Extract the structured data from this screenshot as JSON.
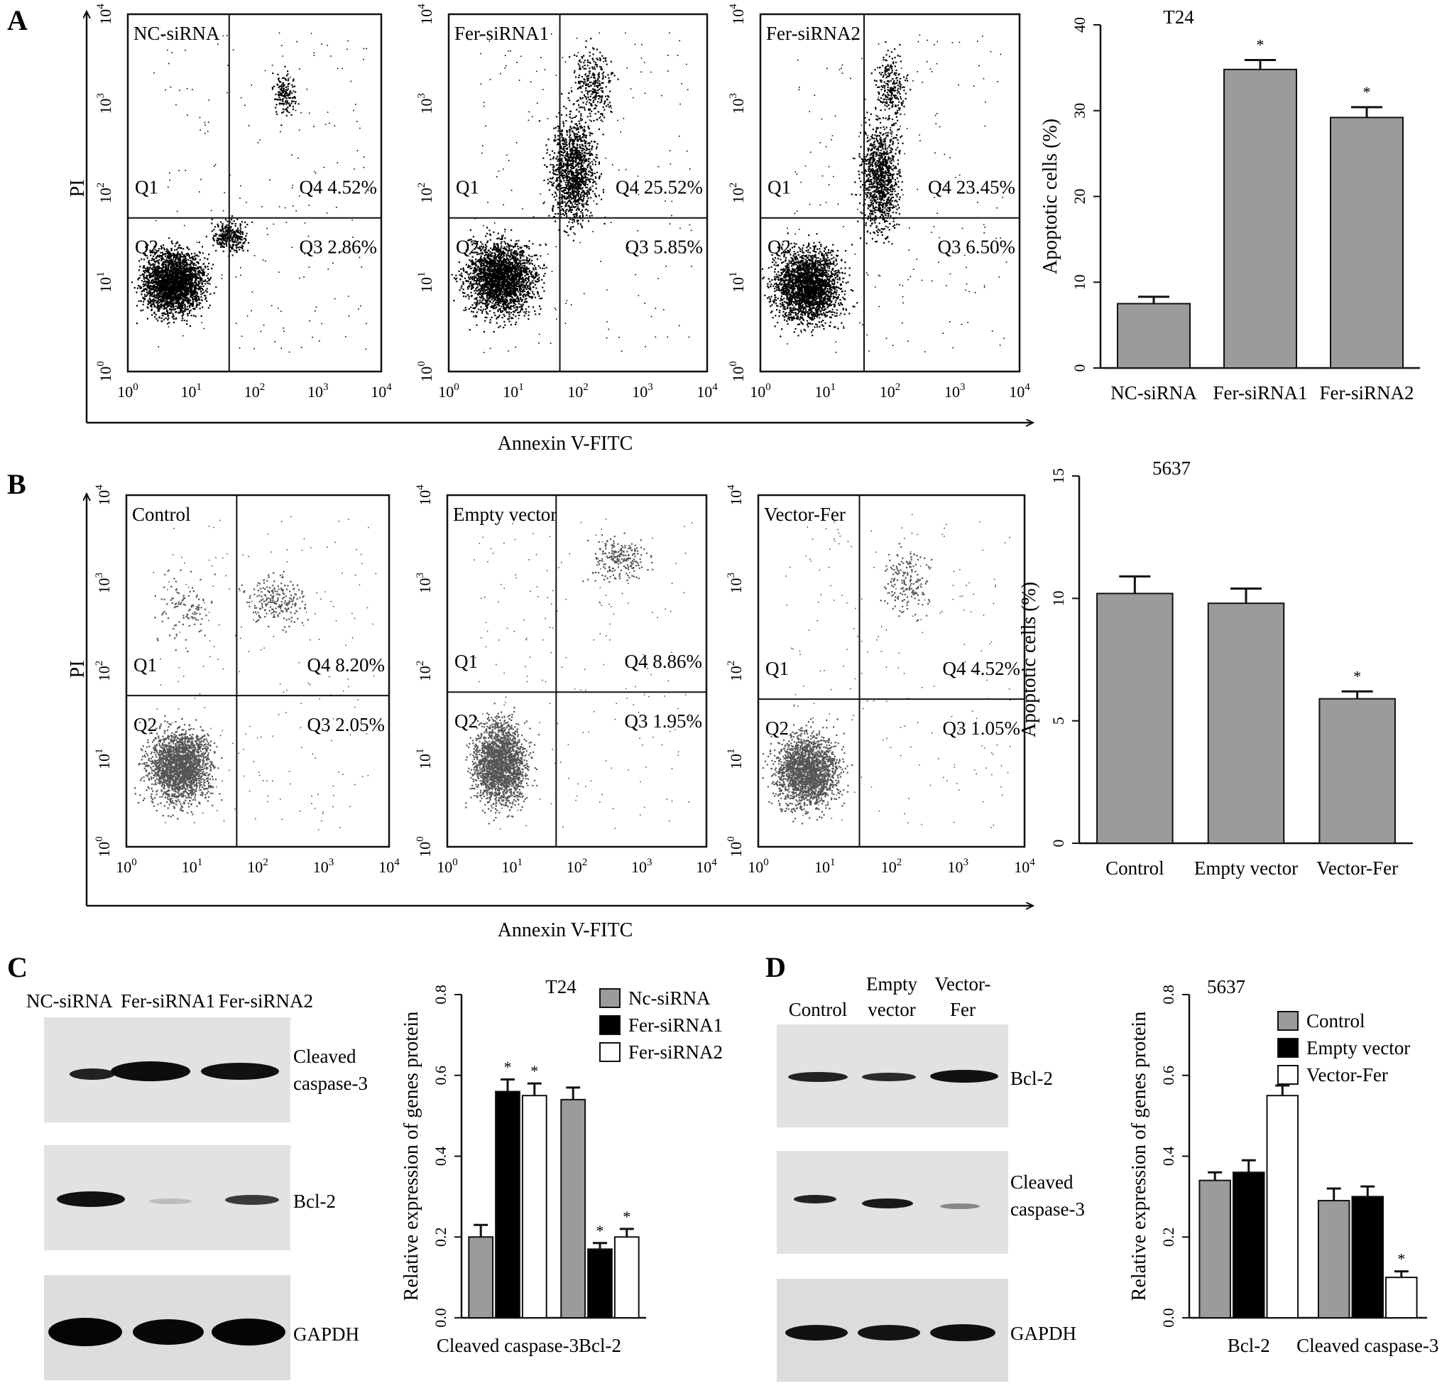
{
  "panel_letters": [
    "A",
    "B",
    "C",
    "D"
  ],
  "A": {
    "axis_x": "Annexin V-FITC",
    "axis_y": "PI",
    "decade_ticks": [
      "10",
      "10",
      "10",
      "10",
      "10"
    ],
    "decade_exps": [
      "0",
      "1",
      "2",
      "3",
      "4"
    ],
    "plots": [
      {
        "title": "NC-siRNA",
        "q1": "Q1",
        "q2": "Q2",
        "q3": "Q3 2.86%",
        "q4": "Q4 4.52%"
      },
      {
        "title": "Fer-siRNA1",
        "q1": "Q1",
        "q2": "Q2",
        "q3": "Q3   5.85%",
        "q4": "Q4 25.52%"
      },
      {
        "title": "Fer-siRNA2",
        "q1": "Q1",
        "q2": "Q2",
        "q3": "Q3   6.50%",
        "q4": "Q4 23.45%"
      }
    ]
  },
  "B": {
    "axis_x": "Annexin V-FITC",
    "axis_y": "PI",
    "plots": [
      {
        "title": "Control",
        "q1": "Q1",
        "q2": "Q2",
        "q3": "Q3 2.05%",
        "q4": "Q4 8.20%"
      },
      {
        "title": "Empty vector",
        "q1": "Q1",
        "q2": "Q2",
        "q3": "Q3 1.95%",
        "q4": "Q4 8.86%"
      },
      {
        "title": "Vector-Fer",
        "q1": "Q1",
        "q2": "Q2",
        "q3": "Q3 1.05%",
        "q4": "Q4 4.52%"
      }
    ]
  },
  "C": {
    "blot_lanes": [
      "NC-siRNA",
      "Fer-siRNA1",
      "Fer-siRNA2"
    ],
    "blot_bands": [
      "Cleaved",
      "caspase-3",
      "Bcl-2",
      "GAPDH"
    ]
  },
  "D": {
    "blot_lanes_top": [
      "Empty",
      "Vector-"
    ],
    "blot_lanes_bottom": [
      "Control",
      "vector",
      "Fer"
    ],
    "blot_bands": [
      "Bcl-2",
      "Cleaved",
      "caspase-3",
      "GAPDH"
    ]
  },
  "colors": {
    "gray_bar": "#9b9b9b",
    "black_bar": "#000000",
    "white_bar": "#ffffff",
    "dots_A": "#000000",
    "dots_B": "#555555"
  },
  "chart_data": [
    {
      "type": "bar",
      "title": "T24",
      "ylabel": "Apoptotic cells (%)",
      "categories": [
        "NC-siRNA",
        "Fer-siRNA1",
        "Fer-siRNA2"
      ],
      "values": [
        7.5,
        34.8,
        29.2
      ],
      "errors": [
        0.8,
        1.1,
        1.2
      ],
      "significance": [
        "",
        "*",
        "*"
      ],
      "ylim": [
        0,
        40
      ],
      "yticks": [
        "0",
        "10",
        "20",
        "30",
        "40"
      ]
    },
    {
      "type": "bar",
      "title": "5637",
      "ylabel": "Apoptotic cells (%)",
      "categories": [
        "Control",
        "Empty vector",
        "Vector-Fer"
      ],
      "values": [
        10.2,
        9.8,
        5.9
      ],
      "errors": [
        0.7,
        0.6,
        0.3
      ],
      "significance": [
        "",
        "",
        "*"
      ],
      "ylim": [
        0,
        15
      ],
      "yticks": [
        "0",
        "5",
        "10",
        "15"
      ]
    },
    {
      "type": "bar",
      "title": "T24",
      "ylabel": "Relative expression of genes protein",
      "categories": [
        "Cleaved caspase-3",
        "Bcl-2"
      ],
      "series": [
        {
          "name": "Nc-siRNA",
          "values": [
            0.2,
            0.54
          ],
          "errors": [
            0.03,
            0.03
          ],
          "significance": [
            "",
            ""
          ]
        },
        {
          "name": "Fer-siRNA1",
          "values": [
            0.56,
            0.17
          ],
          "errors": [
            0.03,
            0.015
          ],
          "significance": [
            "*",
            "*"
          ]
        },
        {
          "name": "Fer-siRNA2",
          "values": [
            0.55,
            0.2
          ],
          "errors": [
            0.03,
            0.02
          ],
          "significance": [
            "*",
            "*"
          ]
        }
      ],
      "ylim": [
        0,
        0.8
      ],
      "yticks": [
        "0.0",
        "0.2",
        "0.4",
        "0.6",
        "0.8"
      ],
      "legend": "top-right"
    },
    {
      "type": "bar",
      "title": "5637",
      "ylabel": "Relative expression of genes protein",
      "categories": [
        "Bcl-2",
        "Cleaved caspase-3"
      ],
      "series": [
        {
          "name": "Control",
          "values": [
            0.34,
            0.29
          ],
          "errors": [
            0.02,
            0.03
          ],
          "significance": [
            "",
            ""
          ]
        },
        {
          "name": "Empty vector",
          "values": [
            0.36,
            0.3
          ],
          "errors": [
            0.03,
            0.025
          ],
          "significance": [
            "",
            ""
          ]
        },
        {
          "name": "Vector-Fer",
          "values": [
            0.55,
            0.1
          ],
          "errors": [
            0.025,
            0.015
          ],
          "significance": [
            "*",
            "*"
          ]
        }
      ],
      "ylim": [
        0,
        0.8
      ],
      "yticks": [
        "0.0",
        "0.2",
        "0.4",
        "0.6",
        "0.8"
      ],
      "legend": "top-right"
    }
  ]
}
